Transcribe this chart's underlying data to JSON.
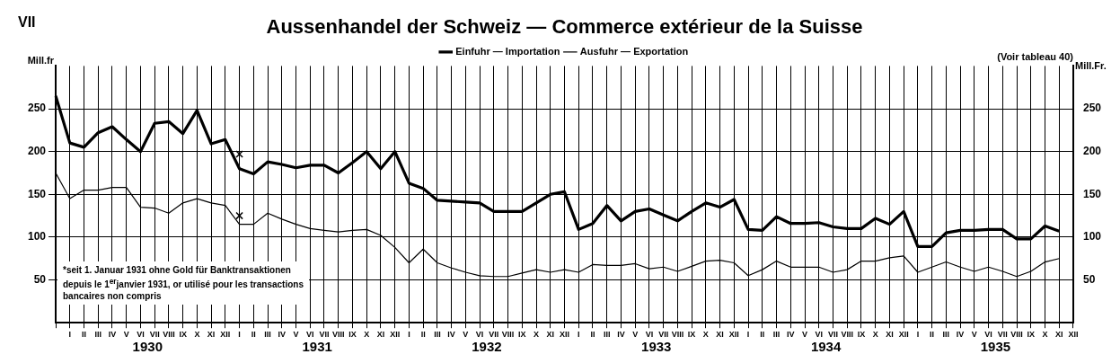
{
  "chart_data": {
    "type": "line",
    "title": "Aussenhandel der Schweiz — Commerce extérieur de la Suisse",
    "ylabel": "Mill.fr",
    "y2label": "Mill.Fr.",
    "categories": [
      null,
      "I",
      "II",
      "III",
      "IV",
      "V",
      "VI",
      "VII",
      "VIII",
      "IX",
      "X",
      "XI",
      "XII",
      "I",
      "II",
      "III",
      "IV",
      "V",
      "VI",
      "VII",
      "VIII",
      "IX",
      "X",
      "XI",
      "XII",
      "I",
      "II",
      "III",
      "IV",
      "V",
      "VI",
      "VII",
      "VIII",
      "IX",
      "X",
      "XI",
      "XII",
      "I",
      "II",
      "III",
      "IV",
      "V",
      "VI",
      "VII",
      "VIII",
      "IX",
      "X",
      "XI",
      "XII",
      "I",
      "II",
      "III",
      "IV",
      "V",
      "VI",
      "VII",
      "VIII",
      "IX",
      "X",
      "XI",
      "XII",
      "I",
      "II",
      "III",
      "IV",
      "V",
      "VI",
      "VII",
      "VIII",
      "IX",
      "X",
      "XI",
      "XII"
    ],
    "series": [
      {
        "name": "Einfuhr — Importation",
        "color": "#000000",
        "values": [
          265,
          210,
          205,
          222,
          229,
          214,
          200,
          233,
          235,
          221,
          248,
          209,
          214,
          180,
          174,
          188,
          185,
          181,
          184,
          184,
          175,
          187,
          200,
          180,
          200,
          163,
          157,
          143,
          142,
          141,
          140,
          130,
          130,
          130,
          140,
          150,
          153,
          109,
          116,
          137,
          119,
          130,
          133,
          126,
          119,
          130,
          140,
          135,
          144,
          109,
          108,
          124,
          116,
          116,
          117,
          112,
          110,
          110,
          122,
          115,
          130,
          89,
          89,
          105,
          108,
          108,
          109,
          109,
          98,
          98,
          113,
          107,
          null
        ]
      },
      {
        "name": "Ausfuhr — Exportation",
        "color": "#000000",
        "values": [
          175,
          145,
          155,
          155,
          158,
          158,
          135,
          134,
          128,
          140,
          145,
          140,
          137,
          115,
          115,
          128,
          121,
          115,
          110,
          108,
          106,
          108,
          109,
          102,
          88,
          70,
          86,
          70,
          64,
          59,
          55,
          54,
          54,
          58,
          62,
          59,
          62,
          59,
          68,
          67,
          67,
          69,
          63,
          65,
          60,
          66,
          72,
          73,
          70,
          55,
          62,
          72,
          65,
          65,
          65,
          59,
          62,
          72,
          72,
          76,
          78,
          59,
          65,
          71,
          65,
          60,
          65,
          60,
          54,
          60,
          71,
          75,
          null
        ]
      },
      {
        "type": "scatter",
        "marker": "cross",
        "color": "#000000",
        "values": [
          null,
          null,
          null,
          null,
          null,
          null,
          null,
          null,
          null,
          null,
          null,
          null,
          null,
          197,
          null,
          null,
          null,
          null,
          null,
          null,
          null,
          null,
          null,
          null,
          null,
          null,
          null,
          null,
          null,
          null,
          null,
          null,
          null,
          null,
          null,
          null,
          null,
          null,
          null,
          null,
          null,
          null,
          null,
          null,
          null,
          null,
          null,
          null,
          null,
          null,
          null,
          null,
          null,
          null,
          null,
          null,
          null,
          null,
          null,
          null,
          null,
          null,
          null,
          null,
          null,
          null,
          null,
          null,
          null,
          null,
          null,
          null,
          null
        ]
      },
      {
        "type": "scatter",
        "marker": "cross",
        "color": "#000000",
        "values": [
          null,
          null,
          null,
          null,
          null,
          null,
          null,
          null,
          null,
          null,
          null,
          null,
          null,
          125,
          null,
          null,
          null,
          null,
          null,
          null,
          null,
          null,
          null,
          null,
          null,
          null,
          null,
          null,
          null,
          null,
          null,
          null,
          null,
          null,
          null,
          null,
          null,
          null,
          null,
          null,
          null,
          null,
          null,
          null,
          null,
          null,
          null,
          null,
          null,
          null,
          null,
          null,
          null,
          null,
          null,
          null,
          null,
          null,
          null,
          null,
          null,
          null,
          null,
          null,
          null,
          null,
          null,
          null,
          null,
          null,
          null,
          null,
          null
        ]
      }
    ],
    "ylim": [
      0,
      300
    ],
    "yticks": [
      50,
      100,
      150,
      200,
      250
    ],
    "y2lim": [
      0,
      300
    ],
    "y2ticks": [
      50,
      100,
      150,
      200,
      250
    ],
    "grid": true,
    "legend": "top",
    "marker": "none",
    "line_style": "solid",
    "annotations": [
      "VII",
      "(Voir tableau 40)",
      "*seit 1. Januar 1931 ohne Gold für Banktransaktionen\ndepuis le 1$^{er}$janvier 1931, or utilisé pour les transactions\nbancaires non compris",
      "1930",
      "1931",
      "1932",
      "1933",
      "1934",
      "1935"
    ]
  }
}
